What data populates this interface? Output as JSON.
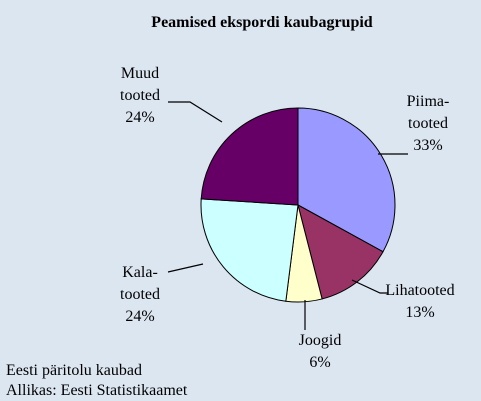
{
  "chart_data": {
    "type": "pie",
    "title": "Peamised ekspordi kaubagrupid",
    "categories": [
      "Piima-\ntooted",
      "Lihatooted",
      "Joogid",
      "Kala-\ntooted",
      "Muud\ntooted"
    ],
    "values": [
      33,
      13,
      6,
      24,
      24
    ],
    "value_labels": [
      "33%",
      "13%",
      "6%",
      "24%",
      "24%"
    ],
    "colors": [
      "#9999ff",
      "#993366",
      "#ffffcc",
      "#ccffff",
      "#660066"
    ],
    "notes": [
      "Eesti päritolu kaubad",
      "Allikas: Eesti Statistikaamet"
    ]
  }
}
